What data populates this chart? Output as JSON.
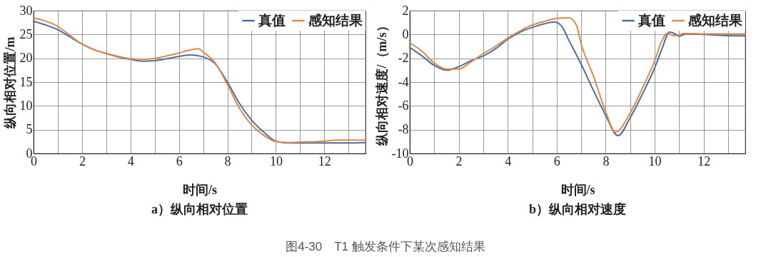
{
  "chart_data": [
    {
      "type": "line",
      "xlabel": "时间/s",
      "ylabel": "纵向相对位置/m",
      "annotations": [
        "a）纵向相对位置",
        "图4-30　T1 触发条件下某次感知结果"
      ],
      "xlim": [
        0,
        13.7
      ],
      "ylim": [
        0,
        30
      ],
      "xticks": [
        0,
        {
          "value": 1,
          "label": null
        },
        2,
        {
          "value": 3,
          "label": null
        },
        4,
        {
          "value": 5,
          "label": null
        },
        6,
        {
          "value": 7,
          "label": null
        },
        8,
        {
          "value": 9,
          "label": null
        },
        10,
        {
          "value": 11,
          "label": null
        },
        12,
        {
          "value": 13,
          "label": null
        }
      ],
      "yticks": [
        0,
        5,
        10,
        15,
        20,
        25,
        30
      ],
      "grid": true,
      "legend": "top right",
      "line_style": "solid",
      "series": [
        {
          "name": "真值",
          "color": "#4a6fa5",
          "x": [
            0,
            0.5,
            1,
            1.5,
            2,
            2.5,
            3,
            3.5,
            4,
            4.5,
            5,
            5.5,
            6,
            6.5,
            7,
            7.5,
            8,
            8.5,
            9,
            9.5,
            10,
            10.5,
            11,
            12,
            13,
            13.7
          ],
          "values": [
            27.8,
            27.0,
            26.0,
            24.5,
            23.0,
            21.8,
            21.0,
            20.3,
            19.8,
            19.4,
            19.5,
            19.9,
            20.4,
            20.7,
            20.3,
            18.8,
            15.0,
            10.5,
            7.0,
            4.5,
            2.6,
            2.2,
            2.2,
            2.2,
            2.2,
            2.3
          ]
        },
        {
          "name": "感知结果",
          "color": "#e0884a",
          "x": [
            0,
            0.5,
            1,
            1.5,
            2,
            2.5,
            3,
            3.5,
            4,
            4.5,
            5,
            5.5,
            6,
            6.5,
            6.8,
            7,
            7.5,
            8,
            8.5,
            9,
            9.5,
            10,
            10.5,
            11,
            12,
            12.5,
            13,
            13.7
          ],
          "values": [
            28.5,
            27.8,
            26.7,
            24.8,
            23.0,
            21.8,
            21.0,
            20.4,
            19.9,
            19.8,
            20.0,
            20.5,
            21.1,
            21.8,
            22.0,
            21.3,
            19.0,
            14.5,
            9.5,
            6.0,
            3.8,
            2.5,
            2.3,
            2.4,
            2.6,
            2.8,
            2.8,
            2.8
          ]
        }
      ]
    },
    {
      "type": "line",
      "xlabel": "时间/s",
      "ylabel": "纵向相对速度/（m/s）",
      "annotations": [
        "b）纵向相对速度"
      ],
      "xlim": [
        0,
        13.7
      ],
      "ylim": [
        -10,
        2
      ],
      "xticks": [
        0,
        {
          "value": 1,
          "label": null
        },
        2,
        {
          "value": 3,
          "label": null
        },
        4,
        {
          "value": 5,
          "label": null
        },
        6,
        {
          "value": 7,
          "label": null
        },
        8,
        {
          "value": 9,
          "label": null
        },
        10,
        {
          "value": 11,
          "label": null
        },
        12,
        {
          "value": 13,
          "label": null
        }
      ],
      "yticks": [
        -10,
        -8,
        -6,
        -4,
        -2,
        0,
        2
      ],
      "grid": true,
      "legend": "top right",
      "line_style": "solid",
      "series": [
        {
          "name": "真值",
          "color": "#4a6fa5",
          "x": [
            0,
            0.5,
            1,
            1.5,
            2,
            2.5,
            3,
            3.5,
            4,
            4.5,
            5,
            5.5,
            5.9,
            6.2,
            6.5,
            7,
            7.5,
            8,
            8.5,
            9,
            9.5,
            10,
            10.3,
            10.6,
            10.8,
            11,
            11.3,
            12,
            13,
            13.7
          ],
          "values": [
            -1.1,
            -1.8,
            -2.6,
            -3.0,
            -2.7,
            -2.2,
            -1.8,
            -1.2,
            -0.4,
            0.2,
            0.6,
            0.9,
            1.05,
            0.7,
            -0.5,
            -2.5,
            -4.7,
            -6.8,
            -8.5,
            -7.0,
            -5.0,
            -2.8,
            -1.2,
            0.2,
            0.1,
            -0.15,
            0.05,
            0,
            -0.1,
            -0.12
          ]
        },
        {
          "name": "感知结果",
          "color": "#e0884a",
          "x": [
            0,
            0.5,
            1,
            1.5,
            2,
            2.5,
            3,
            3.5,
            4,
            4.5,
            5,
            5.5,
            6,
            6.5,
            6.8,
            7,
            7.5,
            8,
            8.4,
            9,
            9.5,
            10,
            10.3,
            10.5,
            10.8,
            11.2,
            12,
            13,
            13.7
          ],
          "values": [
            -0.7,
            -1.4,
            -2.4,
            -2.9,
            -2.9,
            -2.3,
            -1.6,
            -1.0,
            -0.3,
            0.3,
            0.8,
            1.1,
            1.35,
            1.4,
            0.8,
            -0.8,
            -3.5,
            -6.5,
            -8.2,
            -6.6,
            -4.5,
            -2.2,
            -0.5,
            0.1,
            -0.1,
            0.1,
            0.05,
            0.05,
            0.05
          ]
        }
      ]
    }
  ]
}
